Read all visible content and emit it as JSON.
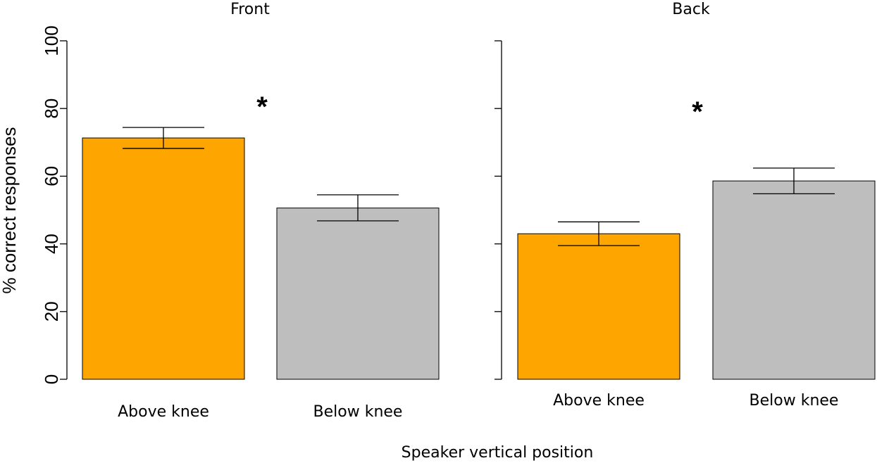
{
  "chart_data": {
    "type": "bar",
    "ylabel": "% correct responses",
    "xlabel": "Speaker vertical position",
    "ylim": [
      0,
      100
    ],
    "yticks": [
      0,
      20,
      40,
      60,
      80,
      100
    ],
    "grid": false,
    "colors": {
      "Above knee": "#FFA500",
      "Below knee": "#BEBEBE"
    },
    "panels": [
      {
        "title": "Front",
        "categories": [
          "Above knee",
          "Below knee"
        ],
        "values": [
          71.3,
          50.6
        ],
        "error_low": [
          68.2,
          46.8
        ],
        "error_high": [
          74.4,
          54.5
        ],
        "annotation": "*"
      },
      {
        "title": "Back",
        "categories": [
          "Above knee",
          "Below knee"
        ],
        "values": [
          43.0,
          58.6
        ],
        "error_low": [
          39.5,
          54.8
        ],
        "error_high": [
          46.5,
          62.4
        ],
        "annotation": "*"
      }
    ]
  }
}
